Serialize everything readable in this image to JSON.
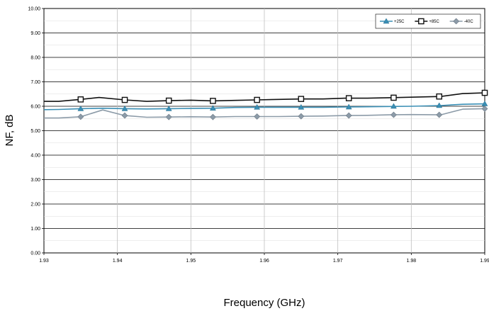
{
  "chart_data": {
    "type": "line",
    "title": "",
    "xlabel": "Frequency (GHz)",
    "ylabel": "NF, dB",
    "xlim": [
      1.93,
      1.99
    ],
    "ylim": [
      0,
      10
    ],
    "x_ticks": [
      "1.93",
      "1.94",
      "1.95",
      "1.96",
      "1.97",
      "1.98",
      "1.99"
    ],
    "y_ticks": [
      "0.00",
      "1.00",
      "2.00",
      "3.00",
      "4.00",
      "5.00",
      "6.00",
      "7.00",
      "8.00",
      "9.00",
      "10.00"
    ],
    "grid": true,
    "legend_position": "top-right",
    "series": [
      {
        "name": "+25C",
        "color": "#3a8fb5",
        "marker": "triangle",
        "x": [
          1.93,
          1.932,
          1.935,
          1.938,
          1.941,
          1.944,
          1.947,
          1.95,
          1.953,
          1.956,
          1.959,
          1.962,
          1.965,
          1.968,
          1.971,
          1.974,
          1.977,
          1.98,
          1.984,
          1.987,
          1.99
        ],
        "y": [
          5.86,
          5.87,
          5.9,
          5.92,
          5.9,
          5.89,
          5.9,
          5.91,
          5.92,
          5.95,
          5.96,
          5.96,
          5.96,
          5.96,
          5.97,
          5.98,
          5.99,
          6.0,
          6.03,
          6.08,
          6.1
        ],
        "marker_x": [
          1.935,
          1.941,
          1.947,
          1.953,
          1.959,
          1.965,
          1.9715,
          1.9776,
          1.9838,
          1.99
        ],
        "marker_y": [
          5.9,
          5.9,
          5.9,
          5.92,
          5.96,
          5.96,
          5.97,
          6.0,
          6.03,
          6.1
        ]
      },
      {
        "name": "+85C",
        "color": "#111111",
        "marker": "square",
        "x": [
          1.93,
          1.932,
          1.935,
          1.9375,
          1.941,
          1.944,
          1.947,
          1.95,
          1.953,
          1.956,
          1.959,
          1.962,
          1.965,
          1.968,
          1.971,
          1.974,
          1.977,
          1.98,
          1.984,
          1.987,
          1.99
        ],
        "y": [
          6.2,
          6.2,
          6.28,
          6.36,
          6.26,
          6.2,
          6.23,
          6.25,
          6.22,
          6.24,
          6.26,
          6.28,
          6.3,
          6.3,
          6.33,
          6.33,
          6.35,
          6.37,
          6.4,
          6.52,
          6.55
        ],
        "marker_x": [
          1.935,
          1.941,
          1.947,
          1.953,
          1.959,
          1.965,
          1.9715,
          1.9776,
          1.9838,
          1.99
        ],
        "marker_y": [
          6.28,
          6.26,
          6.23,
          6.22,
          6.26,
          6.3,
          6.33,
          6.35,
          6.4,
          6.55
        ]
      },
      {
        "name": "-40C",
        "color": "#8c9ba8",
        "marker": "diamond",
        "x": [
          1.93,
          1.932,
          1.935,
          1.938,
          1.941,
          1.944,
          1.947,
          1.95,
          1.953,
          1.956,
          1.959,
          1.962,
          1.965,
          1.968,
          1.971,
          1.974,
          1.977,
          1.98,
          1.984,
          1.987,
          1.99
        ],
        "y": [
          5.52,
          5.52,
          5.57,
          5.85,
          5.62,
          5.55,
          5.56,
          5.57,
          5.56,
          5.58,
          5.58,
          5.58,
          5.59,
          5.6,
          5.62,
          5.63,
          5.65,
          5.66,
          5.65,
          5.88,
          5.9
        ],
        "marker_x": [
          1.935,
          1.941,
          1.947,
          1.953,
          1.959,
          1.965,
          1.9715,
          1.9776,
          1.9838,
          1.99
        ],
        "marker_y": [
          5.57,
          5.62,
          5.56,
          5.56,
          5.58,
          5.59,
          5.62,
          5.65,
          5.65,
          5.9
        ]
      }
    ]
  }
}
